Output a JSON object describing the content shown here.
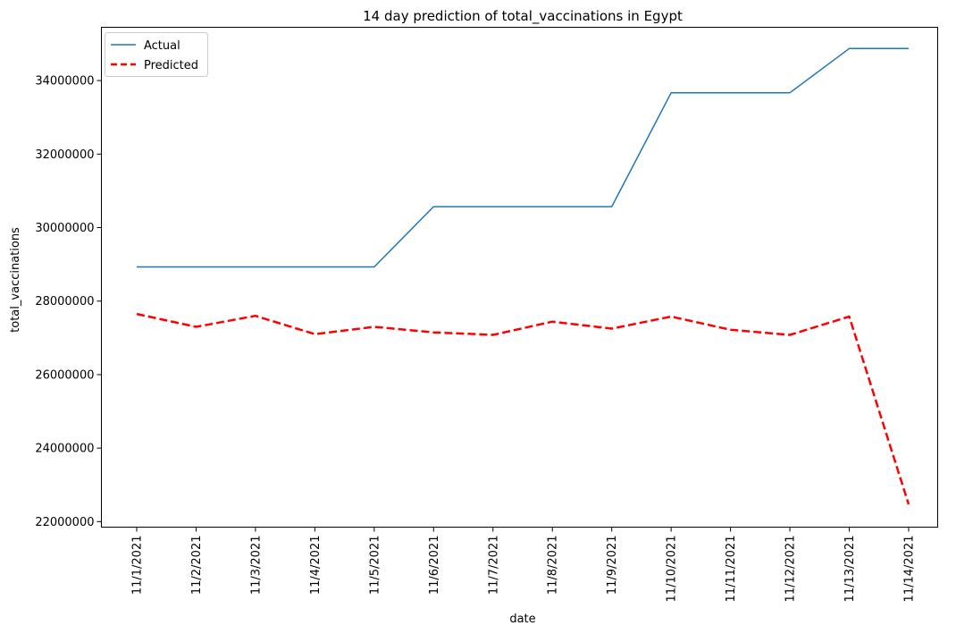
{
  "chart_data": {
    "type": "line",
    "title": "14 day prediction of total_vaccinations in Egypt",
    "xlabel": "date",
    "ylabel": "total_vaccinations",
    "categories": [
      "11/1/2021",
      "11/2/2021",
      "11/3/2021",
      "11/4/2021",
      "11/5/2021",
      "11/6/2021",
      "11/7/2021",
      "11/8/2021",
      "11/9/2021",
      "11/10/2021",
      "11/11/2021",
      "11/12/2021",
      "11/13/2021",
      "11/14/2021"
    ],
    "series": [
      {
        "name": "Actual",
        "color": "#1f77b4",
        "style": "solid",
        "values": [
          28930000,
          28930000,
          28930000,
          28930000,
          28930000,
          30570000,
          30570000,
          30570000,
          30570000,
          33670000,
          33670000,
          33670000,
          34870000,
          34870000
        ]
      },
      {
        "name": "Predicted",
        "color": "#ff0000",
        "style": "dashed",
        "values": [
          27650000,
          27300000,
          27600000,
          27100000,
          27300000,
          27150000,
          27080000,
          27440000,
          27250000,
          27580000,
          27220000,
          27080000,
          27580000,
          22470000
        ]
      }
    ],
    "yticks": [
      22000000,
      24000000,
      26000000,
      28000000,
      30000000,
      32000000,
      34000000
    ],
    "ylim": [
      21850000,
      35450000
    ],
    "legend": "upper-left",
    "grid": false
  }
}
